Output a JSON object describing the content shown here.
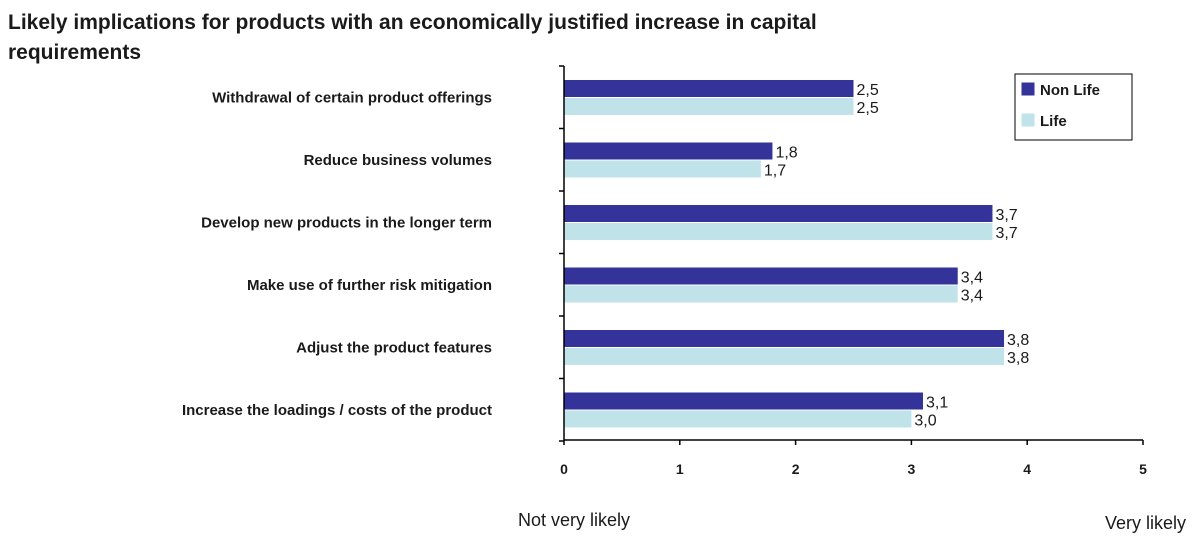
{
  "chart_data": {
    "type": "bar",
    "orientation": "horizontal",
    "title": "Likely implications for products with an economically justified increase in capital requirements",
    "categories": [
      "Withdrawal of certain product offerings",
      "Reduce business volumes",
      "Develop new products in the longer term",
      "Make use of further risk mitigation",
      "Adjust the product features",
      "Increase the loadings / costs of the product"
    ],
    "series": [
      {
        "name": "Non Life",
        "color": "#333399",
        "values": [
          2.5,
          1.8,
          3.7,
          3.4,
          3.8,
          3.1
        ],
        "labels": [
          "2,5",
          "1,8",
          "3,7",
          "3,4",
          "3,8",
          "3,1"
        ]
      },
      {
        "name": "Life",
        "color": "#bfe3e8",
        "values": [
          2.5,
          1.7,
          3.7,
          3.4,
          3.8,
          3.0
        ],
        "labels": [
          "2,5",
          "1,7",
          "3,7",
          "3,4",
          "3,8",
          "3,0"
        ]
      }
    ],
    "xlim": [
      0,
      5
    ],
    "xticks": [
      "0",
      "1",
      "2",
      "3",
      "4",
      "5"
    ],
    "scale_low_label": "Not very likely",
    "scale_high_label": "Very likely",
    "legend_position": "top-right",
    "grid": false
  }
}
